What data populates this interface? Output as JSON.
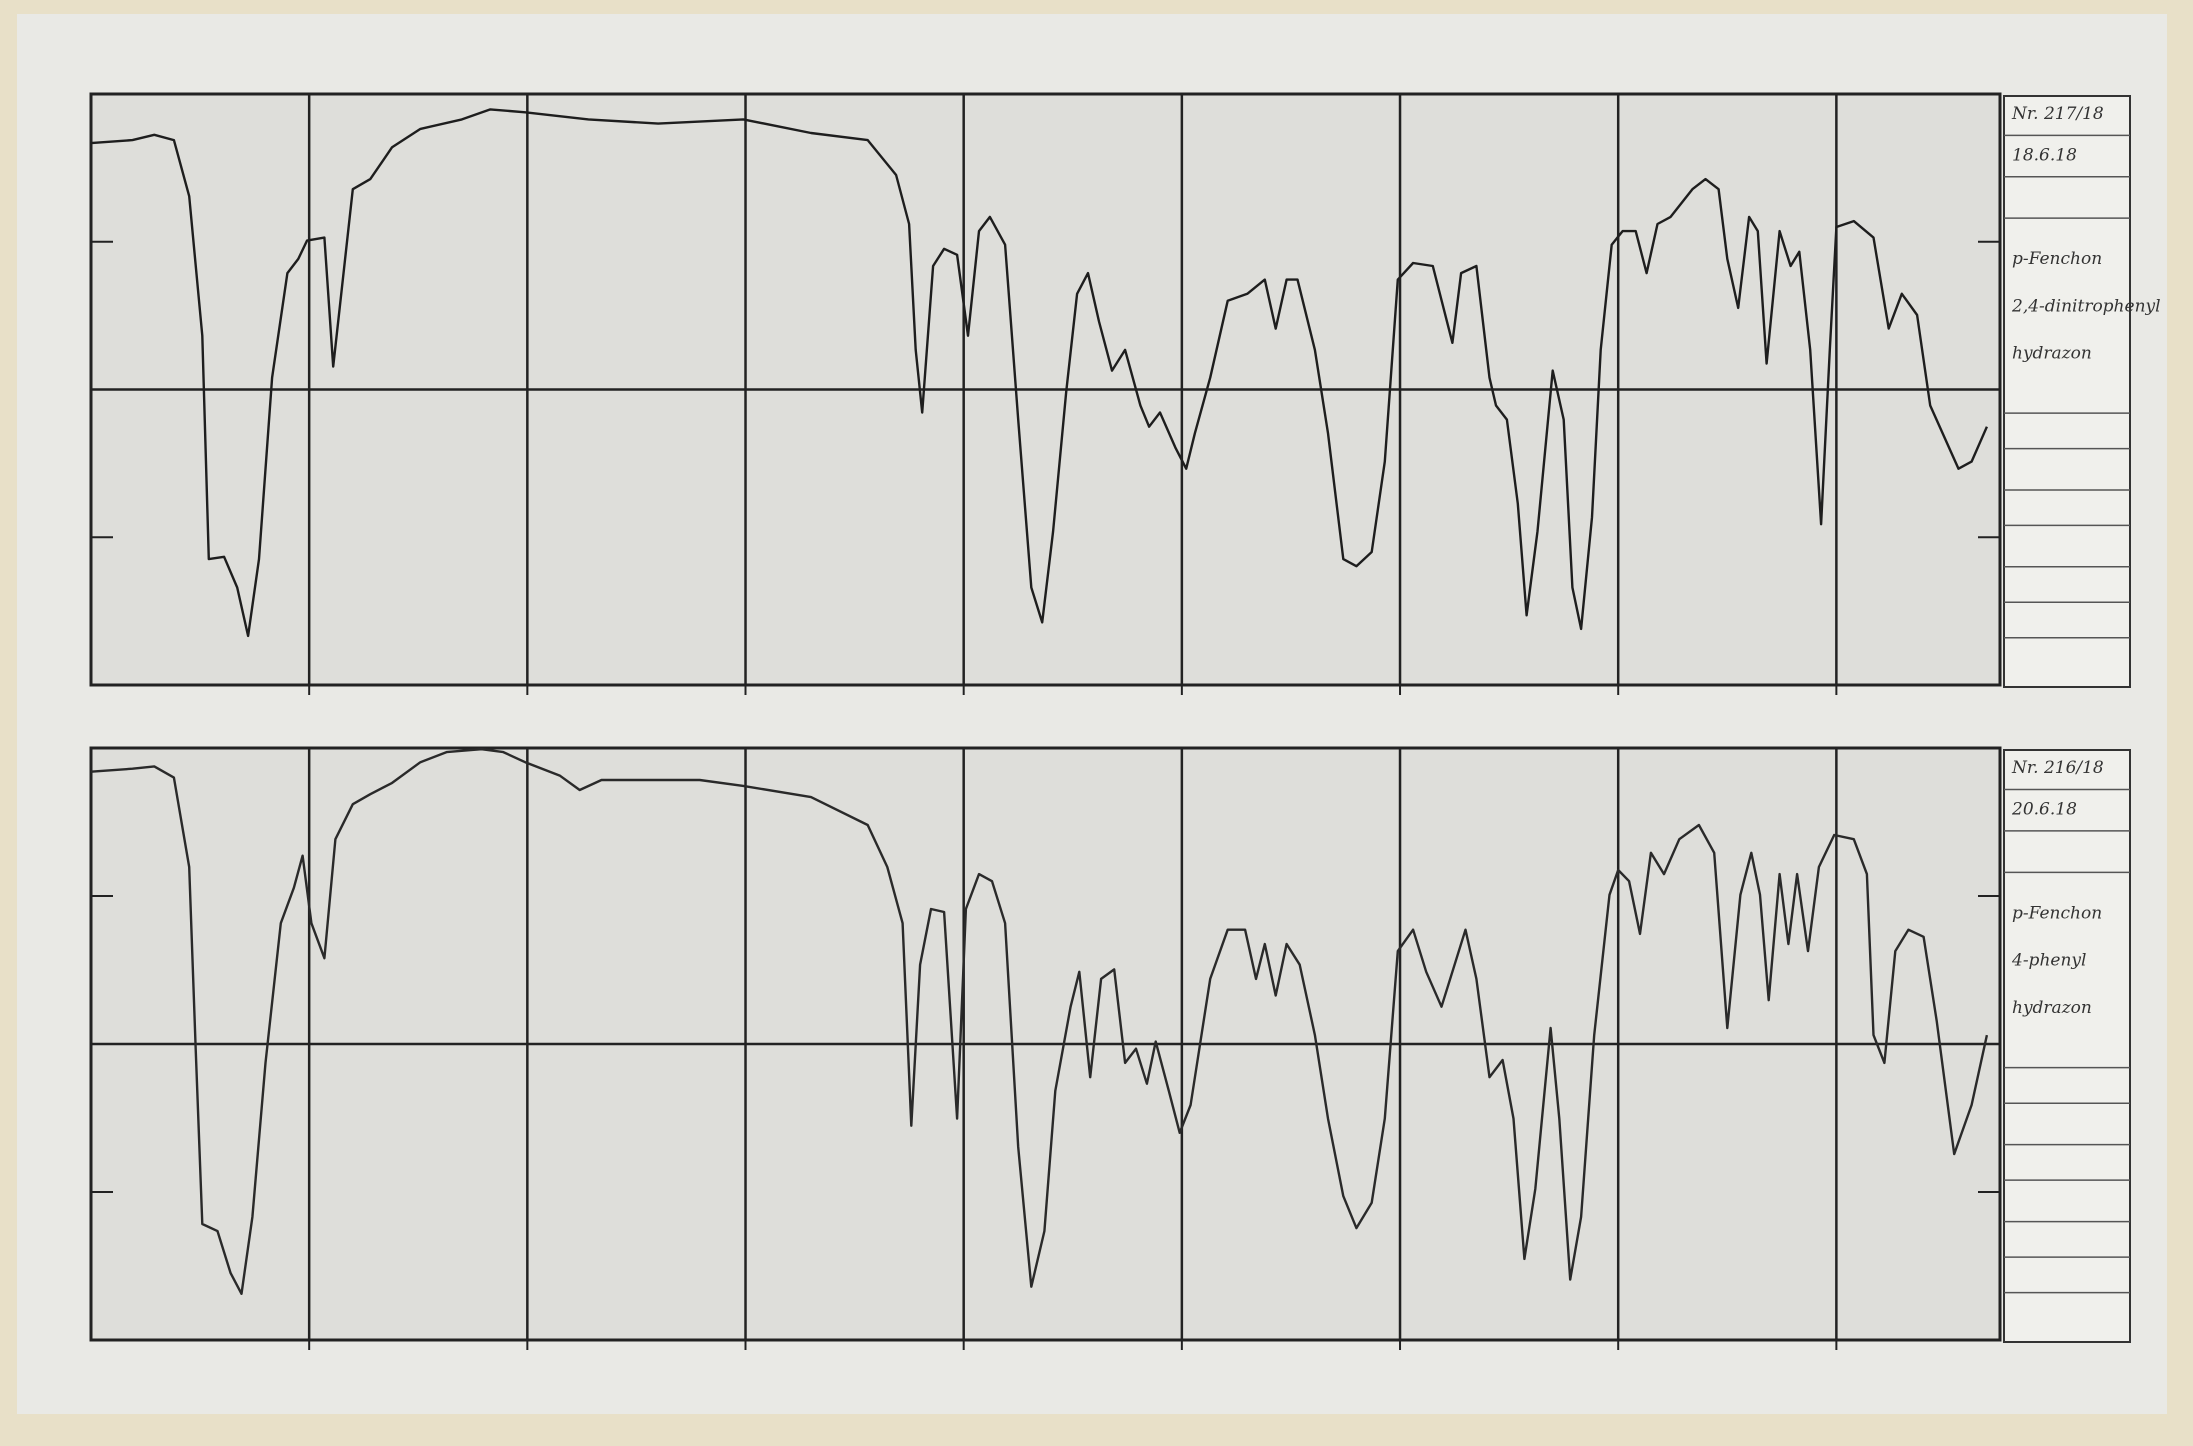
{
  "chart_data": [
    {
      "type": "line",
      "color": "#1e1e1e",
      "xlim": [
        0,
        875
      ],
      "ylim": [
        0,
        100
      ],
      "xticks": [
        100,
        200,
        300,
        400,
        500,
        600,
        700,
        800
      ],
      "yticks": [
        25,
        50,
        75
      ],
      "annotations": [
        "Nr. 217/18",
        "18.6.18",
        "p-Fenchon",
        "2,4-dinitrophenyl",
        "hydrazon"
      ],
      "x": [
        0,
        19,
        29,
        38,
        45,
        51,
        54,
        61,
        67,
        72,
        77,
        83,
        90,
        95,
        99,
        107,
        111,
        114,
        120,
        128,
        138,
        151,
        170,
        183,
        199,
        228,
        260,
        299,
        330,
        356,
        369,
        375,
        378,
        381,
        386,
        391,
        397,
        402,
        407,
        412,
        419,
        425,
        431,
        436,
        441,
        447,
        452,
        457,
        462,
        468,
        474,
        481,
        485,
        490,
        497,
        502,
        506,
        513,
        521,
        530,
        538,
        543,
        548,
        553,
        561,
        567,
        574,
        580,
        587,
        593,
        599,
        606,
        615,
        624,
        628,
        635,
        641,
        644,
        649,
        654,
        658,
        663,
        670,
        675,
        679,
        683,
        688,
        692,
        697,
        702,
        708,
        713,
        718,
        724,
        734,
        740,
        746,
        750,
        755,
        760,
        764,
        768,
        774,
        779,
        783,
        788,
        793,
        797,
        800,
        808,
        817,
        824,
        830,
        837,
        843,
        856,
        862,
        869
      ],
      "values": [
        91.7,
        92.2,
        93.1,
        92.2,
        82.7,
        59.1,
        21.3,
        21.7,
        16.5,
        8.3,
        21.3,
        52.0,
        69.7,
        72.1,
        75.2,
        75.7,
        53.9,
        63.8,
        83.9,
        85.6,
        91.0,
        94.1,
        95.7,
        97.4,
        96.9,
        95.7,
        95.0,
        95.7,
        93.4,
        92.2,
        86.3,
        78.0,
        56.7,
        46.1,
        70.9,
        73.8,
        72.8,
        59.1,
        76.8,
        79.2,
        74.5,
        44.9,
        16.5,
        10.6,
        26.0,
        49.6,
        66.2,
        69.7,
        61.5,
        53.2,
        56.7,
        47.3,
        43.7,
        46.1,
        40.2,
        36.6,
        42.6,
        52.0,
        65.0,
        66.2,
        68.6,
        60.3,
        68.6,
        68.6,
        56.7,
        42.6,
        21.3,
        20.1,
        22.5,
        37.8,
        68.6,
        71.4,
        70.9,
        57.9,
        69.7,
        70.9,
        52.0,
        47.3,
        44.9,
        30.7,
        11.8,
        26.0,
        53.2,
        44.9,
        16.5,
        9.5,
        28.4,
        56.7,
        74.5,
        76.8,
        76.8,
        69.7,
        78.0,
        79.2,
        83.9,
        85.6,
        83.9,
        72.1,
        63.8,
        79.2,
        76.8,
        54.4,
        76.8,
        70.9,
        73.3,
        56.7,
        27.2,
        56.7,
        77.5,
        78.5,
        75.7,
        60.3,
        66.2,
        62.6,
        47.3,
        36.6,
        37.8,
        43.7
      ]
    },
    {
      "type": "line",
      "color": "#2a2a2a",
      "xlim": [
        0,
        875
      ],
      "ylim": [
        0,
        100
      ],
      "xticks": [
        100,
        200,
        300,
        400,
        500,
        600,
        700,
        800
      ],
      "yticks": [
        25,
        50,
        75
      ],
      "annotations": [
        "Nr. 216/18",
        "20.6.18",
        "p-Fenchon",
        "4-phenyl",
        "hydrazon"
      ],
      "x": [
        0,
        19,
        29,
        38,
        45,
        48,
        51,
        58,
        64,
        69,
        74,
        80,
        87,
        93,
        97,
        101,
        107,
        112,
        120,
        128,
        138,
        151,
        163,
        179,
        189,
        199,
        215,
        224,
        234,
        260,
        279,
        299,
        330,
        356,
        365,
        372,
        376,
        380,
        385,
        391,
        397,
        401,
        407,
        413,
        419,
        425,
        431,
        437,
        442,
        449,
        453,
        458,
        463,
        469,
        474,
        479,
        484,
        488,
        494,
        499,
        504,
        513,
        521,
        529,
        534,
        538,
        543,
        548,
        554,
        561,
        567,
        574,
        580,
        587,
        593,
        599,
        606,
        612,
        619,
        625,
        630,
        635,
        641,
        647,
        652,
        657,
        662,
        669,
        673,
        678,
        683,
        689,
        696,
        700,
        705,
        710,
        715,
        721,
        728,
        737,
        744,
        750,
        756,
        761,
        765,
        769,
        774,
        778,
        782,
        787,
        792,
        799,
        808,
        814,
        817,
        822,
        827,
        833,
        840,
        846,
        854,
        862,
        869
      ],
      "values": [
        96.0,
        96.5,
        96.9,
        95.0,
        79.9,
        49.1,
        19.6,
        18.4,
        11.3,
        7.8,
        20.8,
        46.8,
        70.4,
        76.4,
        81.8,
        70.4,
        64.5,
        84.6,
        90.5,
        92.2,
        94.1,
        97.6,
        99.3,
        99.8,
        99.3,
        97.6,
        95.3,
        92.9,
        94.6,
        94.6,
        94.6,
        93.6,
        91.7,
        87.0,
        79.9,
        70.4,
        36.2,
        63.4,
        72.8,
        72.3,
        37.4,
        72.8,
        78.7,
        77.5,
        70.4,
        32.6,
        9.0,
        18.4,
        42.1,
        56.3,
        62.2,
        44.4,
        61.0,
        62.6,
        46.8,
        49.2,
        43.3,
        50.4,
        42.1,
        35.0,
        39.7,
        61.0,
        69.3,
        69.3,
        61.0,
        66.9,
        58.2,
        66.9,
        63.4,
        51.5,
        37.4,
        24.3,
        18.9,
        23.2,
        37.4,
        65.7,
        69.3,
        62.2,
        56.3,
        63.4,
        69.3,
        61.0,
        44.4,
        47.3,
        37.4,
        13.7,
        25.5,
        52.7,
        37.4,
        10.2,
        20.8,
        51.5,
        75.2,
        79.4,
        77.5,
        68.6,
        82.3,
        78.7,
        84.6,
        87.0,
        82.3,
        52.7,
        75.2,
        82.3,
        75.2,
        57.4,
        78.7,
        66.9,
        78.7,
        65.7,
        79.9,
        85.3,
        84.6,
        78.7,
        51.5,
        46.8,
        65.7,
        69.3,
        68.1,
        53.9,
        31.4,
        39.7,
        51.5
      ]
    }
  ]
}
